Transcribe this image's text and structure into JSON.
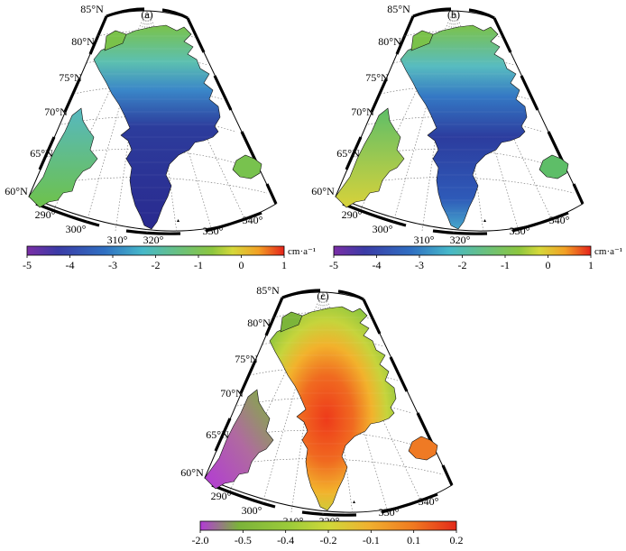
{
  "panels": [
    {
      "id": "a",
      "label": "(a)",
      "lat_labels": [
        "85°N",
        "80°N",
        "75°N",
        "70°N",
        "65°N",
        "60°N"
      ],
      "lon_labels": [
        "290°",
        "300°",
        "310°",
        "320°",
        "330°",
        "340°"
      ]
    },
    {
      "id": "b",
      "label": "(b)",
      "lat_labels": [
        "85°N",
        "80°N",
        "75°N",
        "70°N",
        "65°N",
        "60°N"
      ],
      "lon_labels": [
        "290°",
        "300°",
        "310°",
        "320°",
        "330°",
        "340°"
      ]
    },
    {
      "id": "c",
      "label": "(c)",
      "lat_labels": [
        "85°N",
        "80°N",
        "75°N",
        "70°N",
        "65°N",
        "60°N"
      ],
      "lon_labels": [
        "290°",
        "300°",
        "310°",
        "320°",
        "330°",
        "340°"
      ]
    }
  ],
  "colorbars": [
    {
      "id": "a",
      "ticks": [
        "-5",
        "-4",
        "-3",
        "-2",
        "-1",
        "0",
        "1"
      ],
      "unit": "cm·a⁻¹",
      "colors": [
        "#7b2ea6",
        "#3b3ba6",
        "#2f6fc2",
        "#46b8c9",
        "#6cc17a",
        "#8cc63f",
        "#c8d23a",
        "#f2a025",
        "#e5231b"
      ]
    },
    {
      "id": "b",
      "ticks": [
        "-5",
        "-4",
        "-3",
        "-2",
        "-1",
        "0",
        "1"
      ],
      "unit": "cm·a⁻¹",
      "colors": [
        "#7b2ea6",
        "#3b3ba6",
        "#2f6fc2",
        "#46b8c9",
        "#6cc17a",
        "#8cc63f",
        "#c8d23a",
        "#f2a025",
        "#e5231b"
      ]
    },
    {
      "id": "c",
      "ticks": [
        "-2.0",
        "-0.5",
        "-0.4",
        "-0.2",
        "-0.1",
        "0.1",
        "0.2"
      ],
      "unit": "",
      "colors": [
        "#b23ad6",
        "#7bb33a",
        "#9ccb3a",
        "#c9d43a",
        "#f0b030",
        "#f07a20",
        "#e32a1a"
      ]
    }
  ],
  "colors": {
    "deep_blue": "#2a2a8f",
    "mid_blue": "#2e6cc0",
    "cyan": "#55c0c8",
    "green": "#78c24e",
    "yellow_green": "#c6d43c",
    "orange": "#f09a2a",
    "red": "#e3261c",
    "magenta": "#b23ad6"
  }
}
